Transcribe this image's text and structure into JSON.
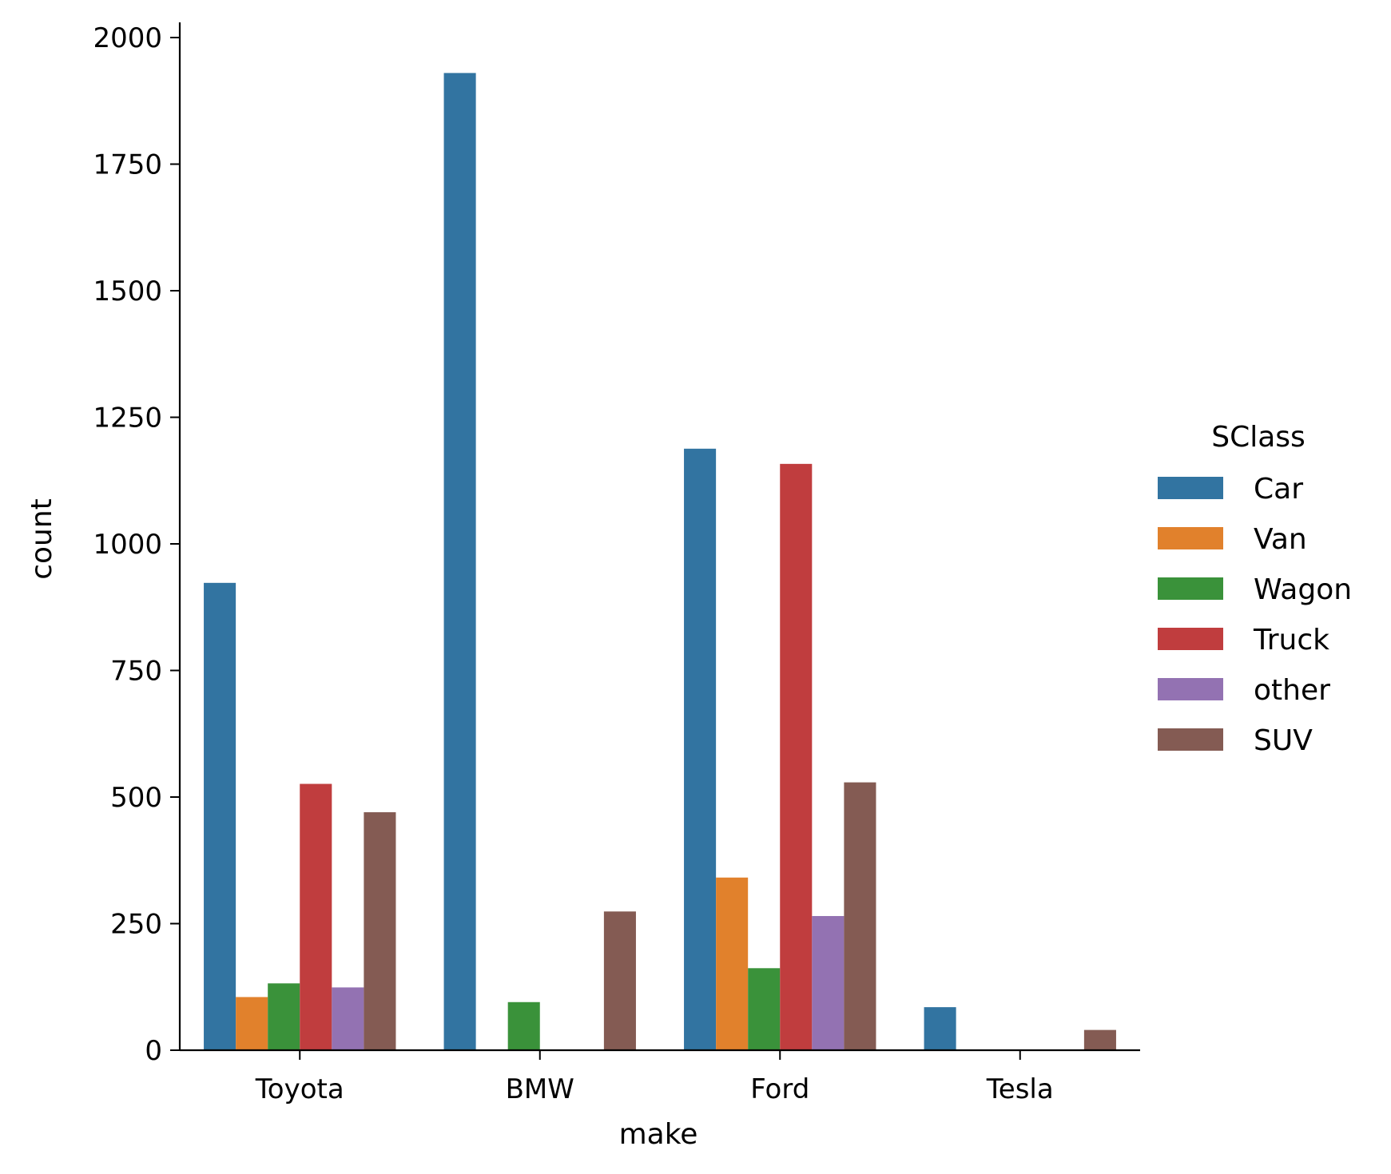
{
  "chart_data": {
    "type": "bar",
    "title": "",
    "xlabel": "make",
    "ylabel": "count",
    "ylim": [
      0,
      2030
    ],
    "yticks": [
      0,
      250,
      500,
      750,
      1000,
      1250,
      1500,
      1750,
      2000
    ],
    "categories": [
      "Toyota",
      "BMW",
      "Ford",
      "Tesla"
    ],
    "legend": {
      "title": "SClass",
      "placement": "right"
    },
    "series": [
      {
        "name": "Car",
        "color": "#3274a1",
        "values": [
          923,
          1930,
          1188,
          85
        ]
      },
      {
        "name": "Van",
        "color": "#e1812c",
        "values": [
          105,
          0,
          341,
          0
        ]
      },
      {
        "name": "Wagon",
        "color": "#3a923a",
        "values": [
          132,
          95,
          162,
          0
        ]
      },
      {
        "name": "Truck",
        "color": "#c03d3e",
        "values": [
          526,
          0,
          1158,
          0
        ]
      },
      {
        "name": "other",
        "color": "#9372b2",
        "values": [
          124,
          0,
          265,
          0
        ]
      },
      {
        "name": "SUV",
        "color": "#845b53",
        "values": [
          470,
          274,
          529,
          40
        ]
      }
    ]
  }
}
